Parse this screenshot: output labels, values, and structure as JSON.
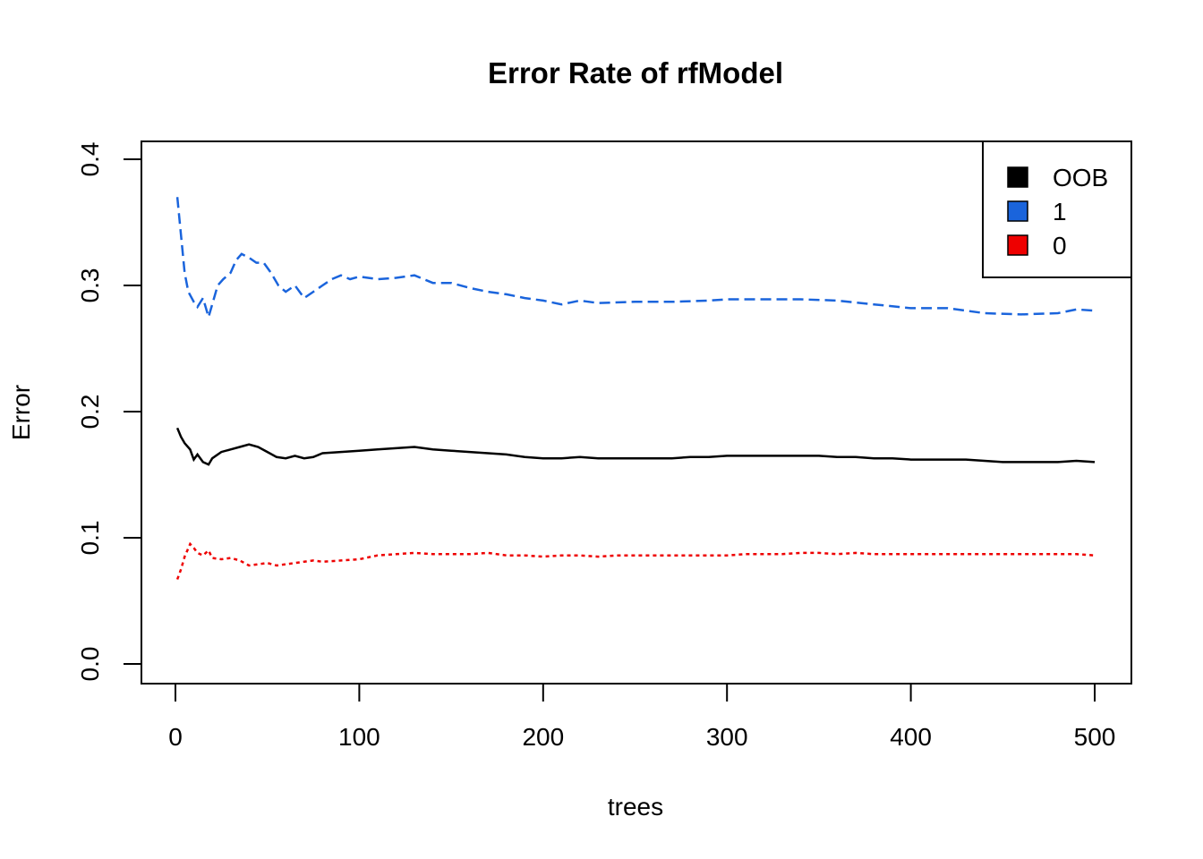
{
  "chart_data": {
    "type": "line",
    "title": "Error Rate of rfModel",
    "xlabel": "trees",
    "ylabel": "Error",
    "xlim": [
      0,
      500
    ],
    "ylim": [
      0.0,
      0.4
    ],
    "xticks": [
      0,
      100,
      200,
      300,
      400,
      500
    ],
    "yticks": [
      0.0,
      0.1,
      0.2,
      0.3,
      0.4
    ],
    "grid": false,
    "legend_position": "top-right",
    "series": [
      {
        "name": "OOB",
        "color": "#000000",
        "linestyle": "solid",
        "x": [
          1,
          3,
          5,
          8,
          10,
          12,
          15,
          18,
          20,
          25,
          30,
          35,
          40,
          45,
          50,
          55,
          60,
          65,
          70,
          75,
          80,
          90,
          100,
          110,
          120,
          130,
          140,
          150,
          160,
          170,
          180,
          190,
          200,
          210,
          220,
          230,
          240,
          250,
          260,
          270,
          280,
          290,
          300,
          310,
          320,
          330,
          340,
          350,
          360,
          370,
          380,
          390,
          400,
          410,
          420,
          430,
          440,
          450,
          460,
          470,
          480,
          490,
          500
        ],
        "y": [
          0.187,
          0.18,
          0.175,
          0.17,
          0.162,
          0.166,
          0.16,
          0.158,
          0.163,
          0.168,
          0.17,
          0.172,
          0.174,
          0.172,
          0.168,
          0.164,
          0.163,
          0.165,
          0.163,
          0.164,
          0.167,
          0.168,
          0.169,
          0.17,
          0.171,
          0.172,
          0.17,
          0.169,
          0.168,
          0.167,
          0.166,
          0.164,
          0.163,
          0.163,
          0.164,
          0.163,
          0.163,
          0.163,
          0.163,
          0.163,
          0.164,
          0.164,
          0.165,
          0.165,
          0.165,
          0.165,
          0.165,
          0.165,
          0.164,
          0.164,
          0.163,
          0.163,
          0.162,
          0.162,
          0.162,
          0.162,
          0.161,
          0.16,
          0.16,
          0.16,
          0.16,
          0.161,
          0.16
        ]
      },
      {
        "name": "1",
        "color": "#1a64dc",
        "linestyle": "dashed",
        "x": [
          1,
          3,
          5,
          7,
          10,
          12,
          15,
          18,
          20,
          23,
          26,
          30,
          33,
          36,
          40,
          44,
          48,
          52,
          56,
          60,
          65,
          70,
          75,
          80,
          85,
          90,
          95,
          100,
          110,
          120,
          130,
          140,
          150,
          160,
          170,
          180,
          190,
          200,
          210,
          220,
          230,
          250,
          270,
          290,
          300,
          320,
          340,
          360,
          380,
          400,
          420,
          440,
          460,
          480,
          490,
          500
        ],
        "y": [
          0.37,
          0.34,
          0.31,
          0.295,
          0.287,
          0.283,
          0.29,
          0.275,
          0.285,
          0.3,
          0.305,
          0.31,
          0.32,
          0.325,
          0.322,
          0.318,
          0.318,
          0.31,
          0.3,
          0.295,
          0.3,
          0.29,
          0.295,
          0.3,
          0.305,
          0.308,
          0.305,
          0.307,
          0.305,
          0.306,
          0.308,
          0.302,
          0.302,
          0.298,
          0.295,
          0.293,
          0.29,
          0.288,
          0.285,
          0.288,
          0.286,
          0.287,
          0.287,
          0.288,
          0.289,
          0.289,
          0.289,
          0.288,
          0.285,
          0.282,
          0.282,
          0.278,
          0.277,
          0.278,
          0.281,
          0.28
        ]
      },
      {
        "name": "0",
        "color": "#ee0000",
        "linestyle": "dotted",
        "x": [
          1,
          3,
          5,
          8,
          10,
          12,
          15,
          18,
          20,
          25,
          30,
          35,
          40,
          45,
          50,
          55,
          60,
          65,
          70,
          75,
          80,
          90,
          100,
          110,
          120,
          130,
          140,
          150,
          160,
          170,
          180,
          190,
          200,
          210,
          220,
          230,
          240,
          250,
          260,
          270,
          280,
          290,
          300,
          310,
          320,
          330,
          340,
          350,
          360,
          370,
          380,
          390,
          400,
          410,
          420,
          430,
          440,
          450,
          460,
          470,
          480,
          490,
          500
        ],
        "y": [
          0.067,
          0.075,
          0.085,
          0.095,
          0.092,
          0.088,
          0.086,
          0.09,
          0.084,
          0.083,
          0.084,
          0.082,
          0.078,
          0.079,
          0.08,
          0.078,
          0.079,
          0.08,
          0.081,
          0.082,
          0.081,
          0.082,
          0.083,
          0.086,
          0.087,
          0.088,
          0.087,
          0.087,
          0.087,
          0.088,
          0.086,
          0.086,
          0.085,
          0.086,
          0.086,
          0.085,
          0.086,
          0.086,
          0.086,
          0.086,
          0.086,
          0.086,
          0.086,
          0.087,
          0.087,
          0.087,
          0.088,
          0.088,
          0.087,
          0.088,
          0.087,
          0.087,
          0.087,
          0.087,
          0.087,
          0.087,
          0.087,
          0.087,
          0.087,
          0.087,
          0.087,
          0.087,
          0.086
        ]
      }
    ]
  }
}
